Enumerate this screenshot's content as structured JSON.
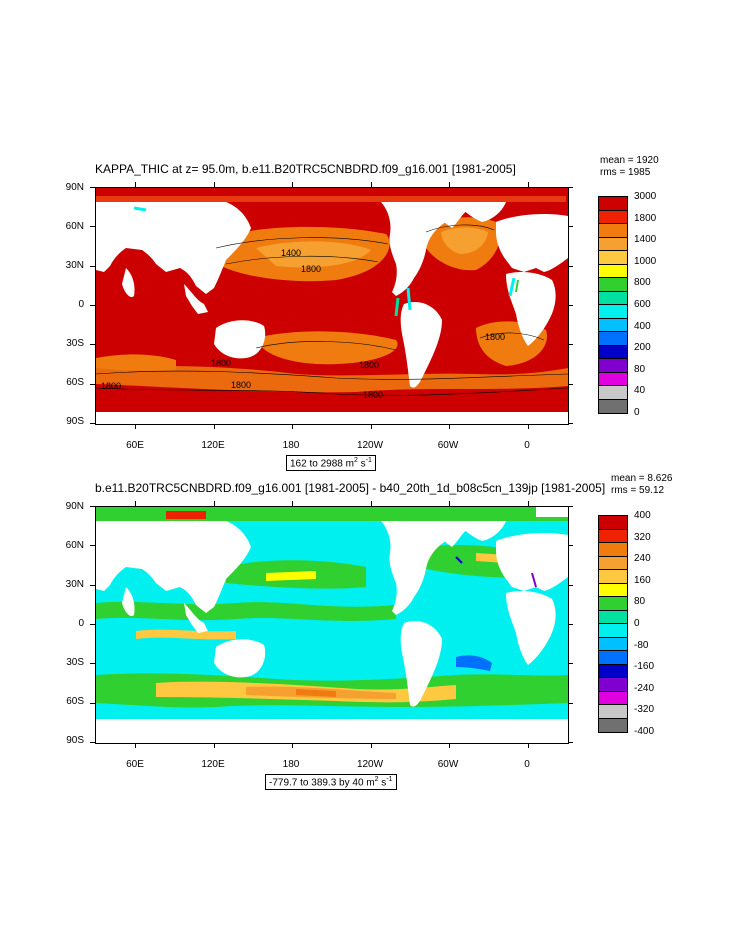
{
  "panel1": {
    "title": "KAPPA_THIC at z=  95.0m, b.e11.B20TRC5CNBDRD.f09_g16.001 [1981-2005]",
    "mean": "mean = 1920",
    "rms": "rms = 1985",
    "range_prefix": "162 to 2988 m",
    "range_units": "2",
    "range_s": " s",
    "range_sexp": "-1",
    "lat_labels": [
      "90N",
      "60N",
      "30N",
      "0",
      "30S",
      "60S",
      "90S"
    ],
    "lon_labels": [
      "60E",
      "120E",
      "180",
      "120W",
      "60W",
      "0"
    ],
    "contour_labels": [
      "1400",
      "1800",
      "1800",
      "1800",
      "1800",
      "1800",
      "1800",
      "1800"
    ],
    "colorbar": {
      "labels": [
        "3000",
        "1800",
        "1400",
        "1000",
        "800",
        "600",
        "400",
        "200",
        "80",
        "40",
        "0"
      ],
      "colors": [
        "#cc0000",
        "#ee2200",
        "#f07c10",
        "#f5a030",
        "#ffc840",
        "#ffff00",
        "#30d030",
        "#00e0a0",
        "#00f0f0",
        "#00c0ff",
        "#0070ff",
        "#0000c8",
        "#8000d0",
        "#e000e0",
        "#c8c8c8",
        "#707070"
      ]
    }
  },
  "panel2": {
    "title": "b.e11.B20TRC5CNBDRD.f09_g16.001 [1981-2005] - b40_20th_1d_b08c5cn_139jp [1981-2005]",
    "mean": "mean = 8.626",
    "rms": "rms = 59.12",
    "range_prefix": "-779.7 to 389.3 by 40 m",
    "range_units": "2",
    "range_s": " s",
    "range_sexp": "-1",
    "lat_labels": [
      "90N",
      "60N",
      "30N",
      "0",
      "30S",
      "60S",
      "90S"
    ],
    "lon_labels": [
      "60E",
      "120E",
      "180",
      "120W",
      "60W",
      "0"
    ],
    "colorbar": {
      "labels": [
        "400",
        "320",
        "240",
        "160",
        "80",
        "0",
        "-80",
        "-160",
        "-240",
        "-320",
        "-400"
      ],
      "colors": [
        "#cc0000",
        "#ee2200",
        "#f07c10",
        "#f5a030",
        "#ffc840",
        "#ffff00",
        "#30d030",
        "#00e0a0",
        "#00f0f0",
        "#00c0ff",
        "#0070ff",
        "#0000c8",
        "#8000d0",
        "#e000e0",
        "#c8c8c8",
        "#707070"
      ]
    }
  }
}
